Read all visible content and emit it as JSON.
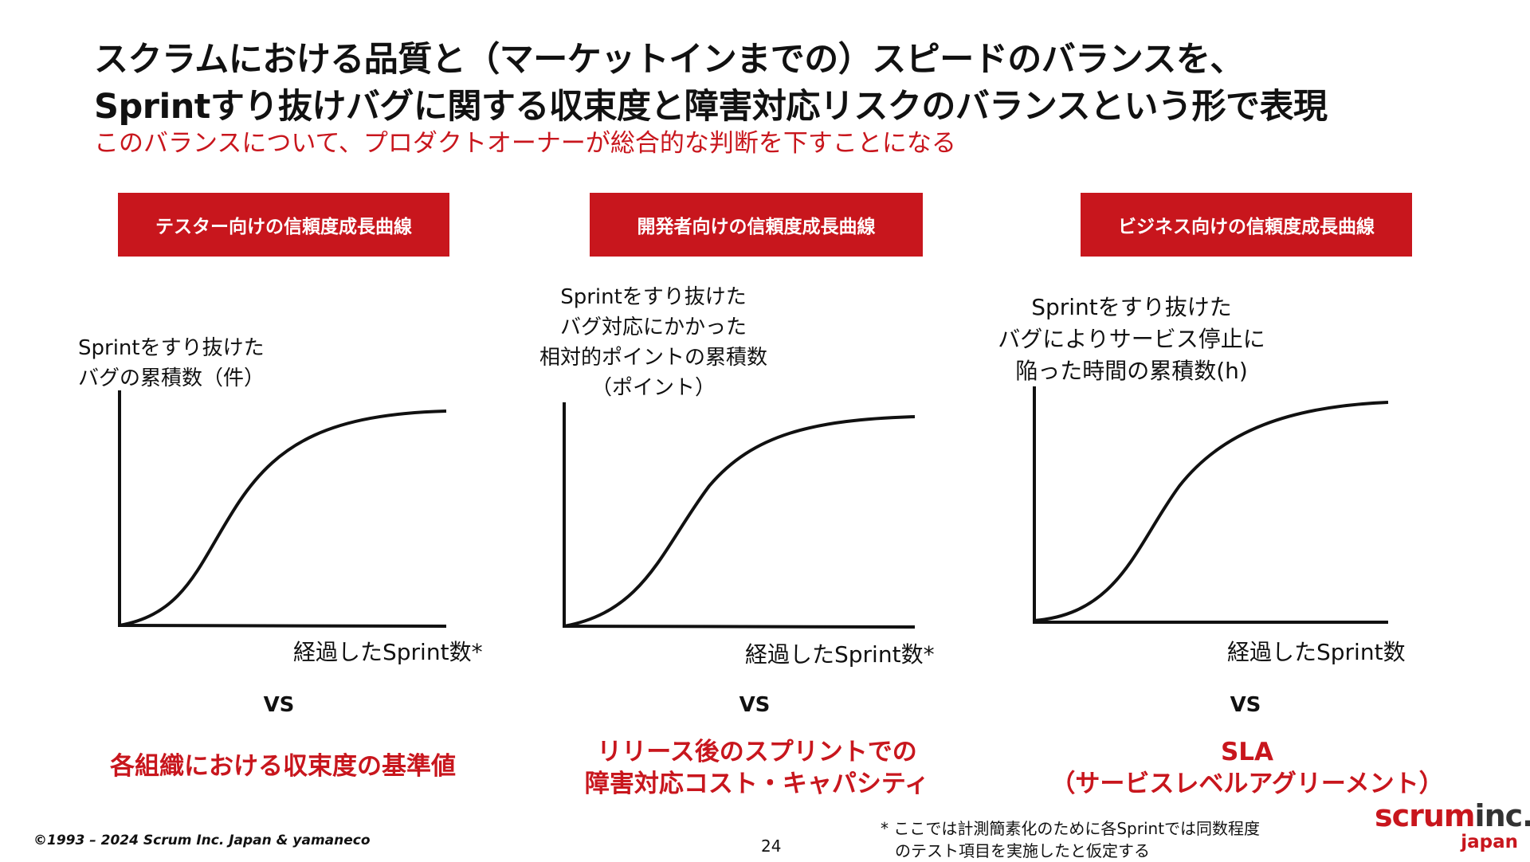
{
  "slide": {
    "title_line1": "スクラムにおける品質と（マーケットインまでの）スピードのバランスを、",
    "title_line2": "Sprintすり抜けバグに関する収束度と障害対応リスクのバランスという形で表現",
    "subtitle": "このバランスについて、プロダクトオーナーが総合的な判断を下すことになる",
    "accent_color": "#c8161d"
  },
  "panels": [
    {
      "header": "テスター向けの信頼度成長曲線",
      "ylabel_lines": [
        "Sprintをすり抜けた",
        "バグの累積数（件）"
      ],
      "xlabel": "経過したSprint数*",
      "vs": "VS",
      "target_lines": [
        "各組織における収束度の基準値"
      ]
    },
    {
      "header": "開発者向けの信頼度成長曲線",
      "ylabel_lines": [
        "Sprintをすり抜けた",
        "バグ対応にかかった",
        "相対的ポイントの累積数",
        "（ポイント）"
      ],
      "xlabel": "経過したSprint数*",
      "vs": "VS",
      "target_lines": [
        "リリース後のスプリントでの",
        "障害対応コスト・キャパシティ"
      ]
    },
    {
      "header": "ビジネス向けの信頼度成長曲線",
      "ylabel_lines": [
        "Sprintをすり抜けた",
        "バグによりサービス停止に",
        "陥った時間の累積数(h)"
      ],
      "xlabel": "経過したSprint数",
      "vs": "VS",
      "target_lines": [
        "SLA",
        "（サービスレベルアグリーメント）"
      ]
    }
  ],
  "footer": {
    "copyright": "©1993 – 2024 Scrum Inc. Japan & yamaneco",
    "page_number": "24",
    "footnote_line1": "* ここでは計測簡素化のために各Sprintでは同数程度",
    "footnote_line2": "のテスト項目を実施したと仮定する",
    "logo_scrum": "scrum",
    "logo_inc": "inc.",
    "logo_sub": "japan"
  }
}
